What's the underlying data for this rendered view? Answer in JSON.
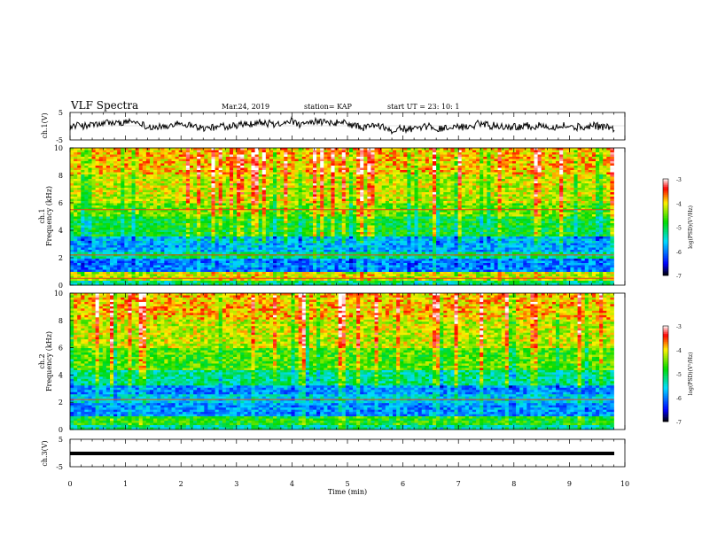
{
  "header": {
    "title": "VLF Spectra",
    "date": "Mar.24, 2019",
    "station": "station= KAP",
    "start": "start  UT =   23: 10: 1"
  },
  "colorbar": {
    "label": "log(PSD)(V²/Hz)",
    "min": -7,
    "max": -3,
    "ticks": [
      "-3",
      "-4",
      "-5",
      "-6",
      "-7"
    ]
  },
  "chart_data": [
    {
      "type": "line",
      "panel": "ch1-waveform",
      "ylabel": "ch.1(V)",
      "ylim": [
        -5,
        5
      ],
      "y_ticks": [
        "5",
        "-5"
      ],
      "xlim": [
        0,
        10
      ],
      "note": "dense noisy signal oscillating roughly between -2 and +2 V"
    },
    {
      "type": "heatmap",
      "panel": "ch1-spectrogram",
      "ylabel": "ch.1\nFrequency (kHz)",
      "ylim": [
        0,
        10
      ],
      "y_ticks": [
        "0",
        "2",
        "4",
        "6",
        "8",
        "10"
      ],
      "xlim": [
        0,
        9.8
      ],
      "color_range": [
        -7,
        -3
      ],
      "bands": [
        {
          "f_min": 0.0,
          "f_max": 0.3,
          "level": -5.2
        },
        {
          "f_min": 0.3,
          "f_max": 1.0,
          "level": -4.2
        },
        {
          "f_min": 1.0,
          "f_max": 2.0,
          "level": -6.0
        },
        {
          "f_min": 2.0,
          "f_max": 2.4,
          "level": -5.2
        },
        {
          "f_min": 2.4,
          "f_max": 3.0,
          "level": -5.8
        },
        {
          "f_min": 3.0,
          "f_max": 3.6,
          "level": -5.7
        },
        {
          "f_min": 3.6,
          "f_max": 5.0,
          "level": -4.9
        },
        {
          "f_min": 5.0,
          "f_max": 6.0,
          "level": -4.5
        },
        {
          "f_min": 6.0,
          "f_max": 8.0,
          "level": -4.2
        },
        {
          "f_min": 8.0,
          "f_max": 10.0,
          "level": -3.9
        }
      ],
      "lines_khz": [
        5.5,
        2.2,
        0.5
      ]
    },
    {
      "type": "heatmap",
      "panel": "ch2-spectrogram",
      "ylabel": "ch.2\nFrequency (kHz)",
      "ylim": [
        0,
        10
      ],
      "y_ticks": [
        "0",
        "2",
        "4",
        "6",
        "8",
        "10"
      ],
      "xlim": [
        0,
        9.8
      ],
      "color_range": [
        -7,
        -3
      ],
      "bands": [
        {
          "f_min": 0.0,
          "f_max": 0.3,
          "level": -5.3
        },
        {
          "f_min": 0.3,
          "f_max": 1.0,
          "level": -4.8
        },
        {
          "f_min": 1.0,
          "f_max": 2.0,
          "level": -5.9
        },
        {
          "f_min": 2.0,
          "f_max": 2.6,
          "level": -5.6
        },
        {
          "f_min": 2.6,
          "f_max": 3.2,
          "level": -5.9
        },
        {
          "f_min": 3.2,
          "f_max": 4.4,
          "level": -5.2
        },
        {
          "f_min": 4.4,
          "f_max": 6.0,
          "level": -4.6
        },
        {
          "f_min": 6.0,
          "f_max": 8.0,
          "level": -4.2
        },
        {
          "f_min": 8.0,
          "f_max": 10.0,
          "level": -3.9
        }
      ],
      "lines_khz": [
        2.2
      ]
    },
    {
      "type": "line",
      "panel": "ch3-waveform",
      "ylabel": "ch.3(V)",
      "ylim": [
        -5,
        5
      ],
      "y_ticks": [
        "5",
        "-5"
      ],
      "xlim": [
        0,
        10
      ],
      "xlabel": "Time  (min)",
      "x_ticks": [
        "0",
        "1",
        "2",
        "3",
        "4",
        "5",
        "6",
        "7",
        "8",
        "9",
        "10"
      ],
      "constant_value": 0
    }
  ]
}
